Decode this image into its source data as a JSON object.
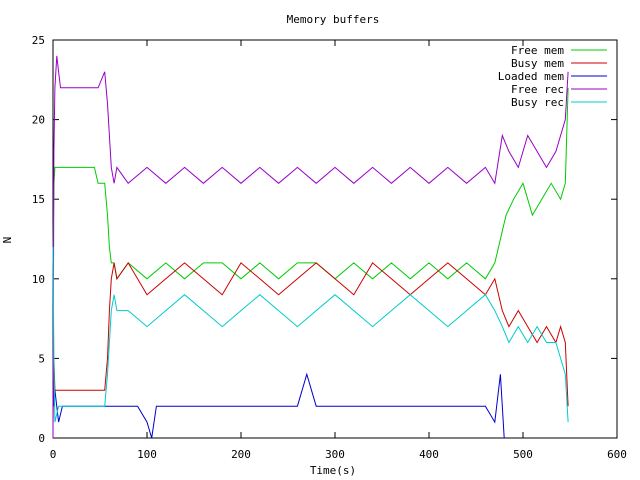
{
  "chart_data": {
    "type": "line",
    "title": "Memory buffers",
    "xlabel": "Time(s)",
    "ylabel": "N",
    "xlim": [
      0,
      600
    ],
    "ylim": [
      0,
      25
    ],
    "xticks": [
      0,
      100,
      200,
      300,
      400,
      500,
      600
    ],
    "yticks": [
      0,
      5,
      10,
      15,
      20,
      25
    ],
    "grid": false,
    "legend_position": "top-right",
    "series": [
      {
        "name": "Free mem",
        "color": "#00cc00",
        "x": [
          0,
          1,
          2,
          10,
          44,
          48,
          55,
          58,
          60,
          62,
          65,
          68,
          80,
          100,
          120,
          140,
          160,
          180,
          200,
          220,
          240,
          260,
          280,
          300,
          320,
          340,
          360,
          380,
          400,
          420,
          440,
          460,
          470,
          474,
          478,
          482,
          490,
          500,
          510,
          520,
          530,
          540,
          545,
          548
        ],
        "y": [
          11,
          16,
          17,
          17,
          17,
          16,
          16,
          14,
          12,
          11,
          11,
          10,
          11,
          10,
          11,
          10,
          11,
          11,
          10,
          11,
          10,
          11,
          11,
          10,
          11,
          10,
          11,
          10,
          11,
          10,
          11,
          10,
          11,
          12,
          13,
          14,
          15,
          16,
          14,
          15,
          16,
          15,
          16,
          22
        ]
      },
      {
        "name": "Busy mem",
        "color": "#cc0000",
        "x": [
          0,
          1,
          2,
          8,
          44,
          55,
          58,
          60,
          62,
          65,
          68,
          80,
          100,
          120,
          140,
          160,
          180,
          200,
          220,
          240,
          260,
          280,
          300,
          320,
          340,
          360,
          380,
          400,
          420,
          440,
          460,
          470,
          478,
          485,
          495,
          505,
          515,
          525,
          535,
          540,
          545,
          548
        ],
        "y": [
          1,
          5,
          3,
          3,
          3,
          3,
          5,
          8,
          10,
          11,
          10,
          11,
          9,
          10,
          11,
          10,
          9,
          11,
          10,
          9,
          10,
          11,
          10,
          9,
          11,
          10,
          9,
          10,
          11,
          10,
          9,
          10,
          8,
          7,
          8,
          7,
          6,
          7,
          6,
          7,
          6,
          2
        ]
      },
      {
        "name": "Loaded mem",
        "color": "#0000cc",
        "x": [
          0,
          1,
          2,
          6,
          10,
          20,
          30,
          40,
          50,
          60,
          70,
          80,
          90,
          100,
          105,
          110,
          120,
          140,
          160,
          180,
          200,
          220,
          240,
          260,
          270,
          280,
          300,
          320,
          340,
          360,
          380,
          400,
          420,
          440,
          460,
          470,
          476,
          480
        ],
        "y": [
          10,
          2,
          3,
          1,
          2,
          2,
          2,
          2,
          2,
          2,
          2,
          2,
          2,
          1,
          0,
          2,
          2,
          2,
          2,
          2,
          2,
          2,
          2,
          2,
          4,
          2,
          2,
          2,
          2,
          2,
          2,
          2,
          2,
          2,
          2,
          1,
          4,
          0
        ]
      },
      {
        "name": "Free rec",
        "color": "#9900cc",
        "x": [
          0,
          1,
          2,
          4,
          6,
          8,
          10,
          44,
          48,
          55,
          58,
          60,
          62,
          65,
          68,
          80,
          100,
          120,
          140,
          160,
          180,
          200,
          220,
          240,
          260,
          280,
          300,
          320,
          340,
          360,
          380,
          400,
          420,
          440,
          460,
          470,
          478,
          485,
          495,
          505,
          515,
          525,
          535,
          540,
          545,
          548
        ],
        "y": [
          0,
          18,
          22,
          24,
          23,
          22,
          22,
          22,
          22,
          23,
          21,
          19,
          17,
          16,
          17,
          16,
          17,
          16,
          17,
          16,
          17,
          16,
          17,
          16,
          17,
          16,
          17,
          16,
          17,
          16,
          17,
          16,
          17,
          16,
          17,
          16,
          19,
          18,
          17,
          19,
          18,
          17,
          18,
          19,
          20,
          23
        ]
      },
      {
        "name": "Busy rec",
        "color": "#00cccc",
        "x": [
          0,
          1,
          2,
          6,
          10,
          44,
          55,
          58,
          60,
          62,
          65,
          68,
          80,
          100,
          120,
          140,
          160,
          180,
          200,
          220,
          240,
          260,
          280,
          300,
          320,
          340,
          360,
          380,
          400,
          420,
          440,
          460,
          470,
          478,
          485,
          495,
          505,
          515,
          525,
          535,
          540,
          545,
          548
        ],
        "y": [
          12,
          5,
          1,
          2,
          2,
          2,
          2,
          4,
          6,
          8,
          9,
          8,
          8,
          7,
          8,
          9,
          8,
          7,
          8,
          9,
          8,
          7,
          8,
          9,
          8,
          7,
          8,
          9,
          8,
          7,
          8,
          9,
          8,
          7,
          6,
          7,
          6,
          7,
          6,
          6,
          5,
          4,
          1
        ]
      }
    ]
  }
}
